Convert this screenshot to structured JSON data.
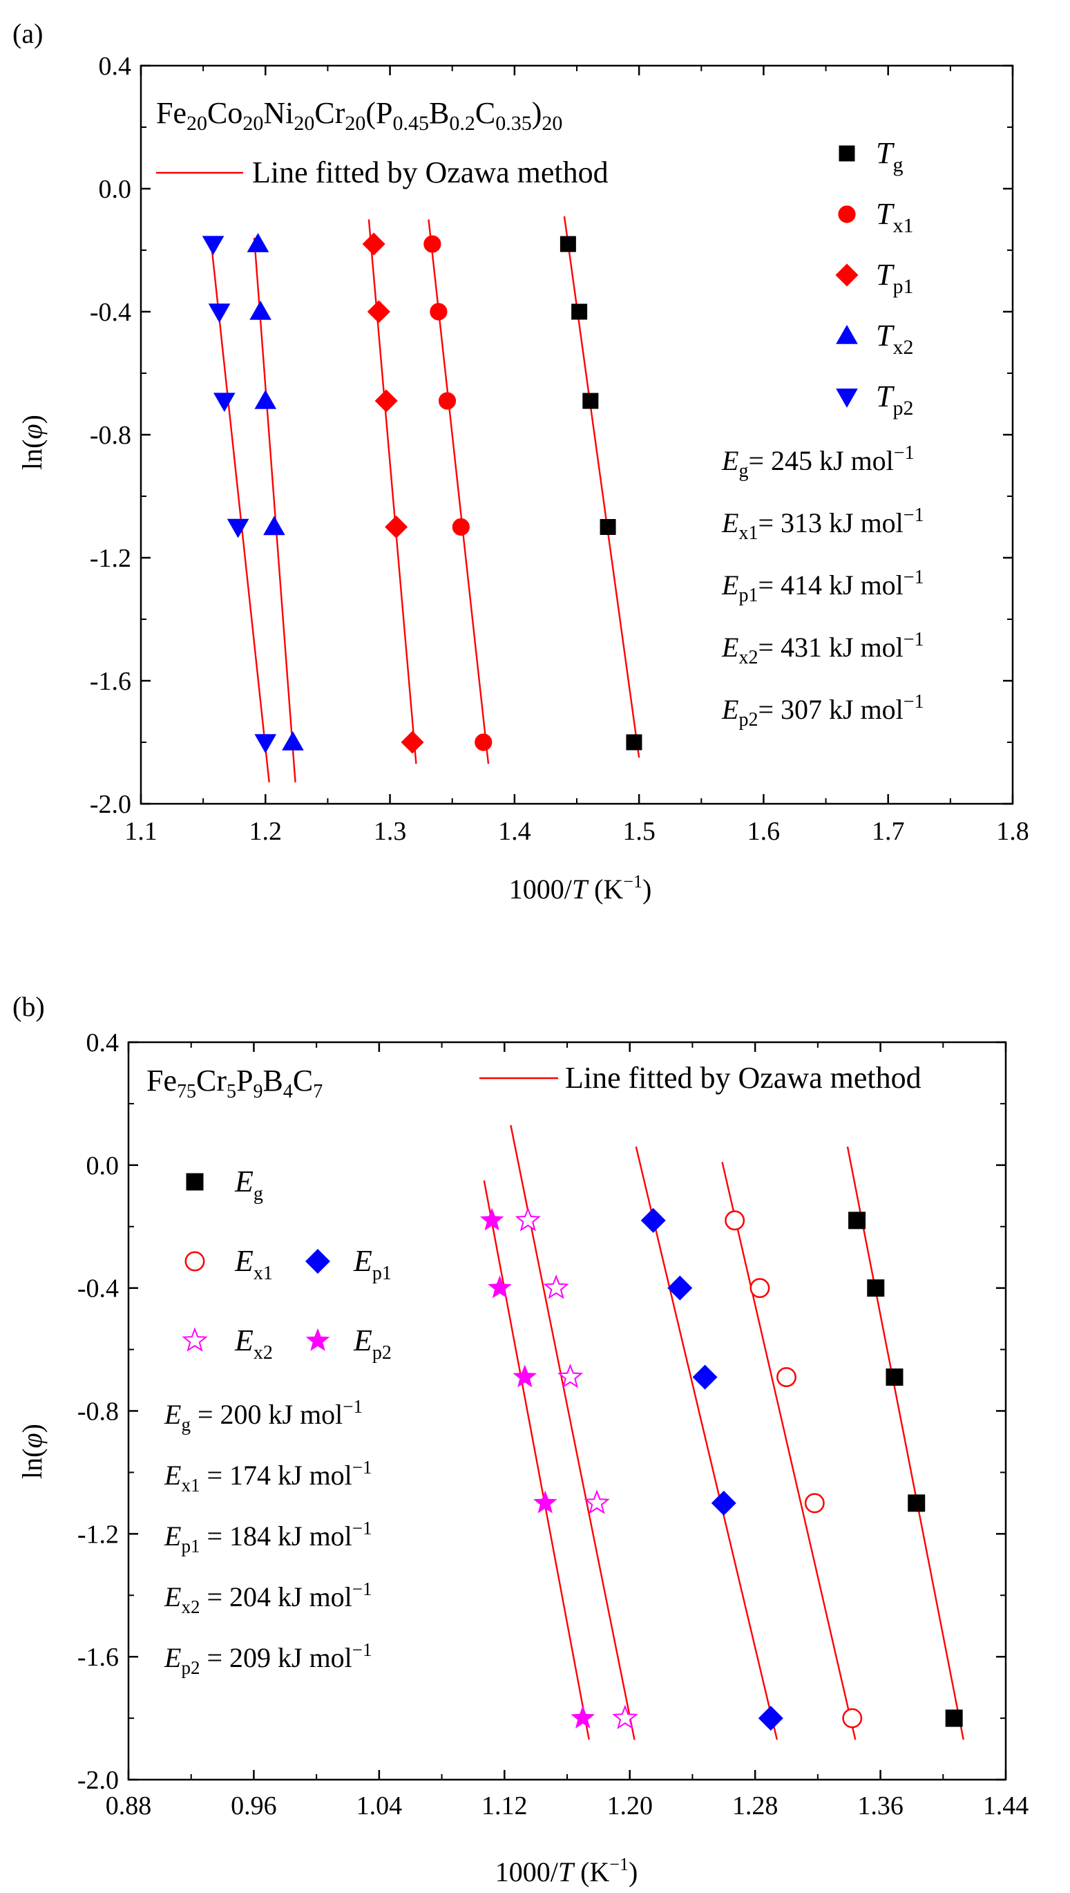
{
  "chart_data": [
    {
      "panel_label": "(a)",
      "type": "scatter",
      "alloy_title": "Fe20Co20Ni20Cr20(P0.45B0.2C0.35)20",
      "alloy_title_parts": [
        {
          "text": "Fe"
        },
        {
          "text": "20",
          "sub": true
        },
        {
          "text": "Co"
        },
        {
          "text": "20",
          "sub": true
        },
        {
          "text": "Ni"
        },
        {
          "text": "20",
          "sub": true
        },
        {
          "text": "Cr"
        },
        {
          "text": "20",
          "sub": true
        },
        {
          "text": "(P"
        },
        {
          "text": "0.45",
          "sub": true
        },
        {
          "text": "B"
        },
        {
          "text": "0.2",
          "sub": true
        },
        {
          "text": "C"
        },
        {
          "text": "0.35",
          "sub": true
        },
        {
          "text": ")"
        },
        {
          "text": "20",
          "sub": true
        }
      ],
      "fit_legend": "Line fitted by Ozawa method",
      "xlabel": "1000/T (K⁻¹)",
      "ylabel": "ln(φ)",
      "xlim": [
        1.1,
        1.8
      ],
      "ylim": [
        -2.0,
        0.4
      ],
      "xticks": [
        "1.1",
        "1.2",
        "1.3",
        "1.4",
        "1.5",
        "1.6",
        "1.7",
        "1.8"
      ],
      "yticks": [
        "0.4",
        "0.0",
        "-0.4",
        "-0.8",
        "-1.2",
        "-1.6",
        "-2.0"
      ],
      "y": [
        -0.18,
        -0.4,
        -0.69,
        -1.1,
        -1.8
      ],
      "series": [
        {
          "name": "Tg",
          "sym": "T",
          "sub": "g",
          "marker": "square",
          "color": "#000000",
          "fill": true,
          "x": [
            1.443,
            1.452,
            1.461,
            1.475,
            1.496
          ]
        },
        {
          "name": "Tx1",
          "sym": "T",
          "sub": "x1",
          "marker": "circle",
          "color": "#ff0000",
          "fill": true,
          "x": [
            1.334,
            1.339,
            1.346,
            1.357,
            1.375
          ]
        },
        {
          "name": "Tp1",
          "sym": "T",
          "sub": "p1",
          "marker": "diamond",
          "color": "#ff0000",
          "fill": true,
          "x": [
            1.287,
            1.291,
            1.297,
            1.305,
            1.318
          ]
        },
        {
          "name": "Tx2",
          "sym": "T",
          "sub": "x2",
          "marker": "triangle-up",
          "color": "#0000ff",
          "fill": true,
          "x": [
            1.194,
            1.196,
            1.2,
            1.207,
            1.222
          ]
        },
        {
          "name": "Tp2",
          "sym": "T",
          "sub": "p2",
          "marker": "triangle-down",
          "color": "#0000ff",
          "fill": true,
          "x": [
            1.158,
            1.163,
            1.167,
            1.178,
            1.2
          ]
        }
      ],
      "fit_lines": [
        {
          "x": [
            1.44,
            1.5
          ],
          "y": [
            -0.09,
            -1.85
          ]
        },
        {
          "x": [
            1.331,
            1.379
          ],
          "y": [
            -0.1,
            -1.87
          ]
        },
        {
          "x": [
            1.283,
            1.321
          ],
          "y": [
            -0.1,
            -1.87
          ]
        },
        {
          "x": [
            1.191,
            1.224
          ],
          "y": [
            -0.16,
            -1.93
          ]
        },
        {
          "x": [
            1.156,
            1.203
          ],
          "y": [
            -0.16,
            -1.93
          ]
        }
      ],
      "energies": [
        {
          "sym": "E",
          "sub": "g",
          "sep": "= ",
          "value": "245",
          "unit": "kJ mol",
          "exp": "−1"
        },
        {
          "sym": "E",
          "sub": "x1",
          "sep": "= ",
          "value": "313",
          "unit": "kJ mol",
          "exp": "−1"
        },
        {
          "sym": "E",
          "sub": "p1",
          "sep": "= ",
          "value": "414",
          "unit": "kJ mol",
          "exp": "−1"
        },
        {
          "sym": "E",
          "sub": "x2",
          "sep": "= ",
          "value": "431",
          "unit": "kJ mol",
          "exp": "−1"
        },
        {
          "sym": "E",
          "sub": "p2",
          "sep": "= ",
          "value": "307",
          "unit": "kJ mol",
          "exp": "−1"
        }
      ]
    },
    {
      "panel_label": "(b)",
      "type": "scatter",
      "alloy_title": "Fe75Cr5P9B4C7",
      "alloy_title_parts": [
        {
          "text": "Fe"
        },
        {
          "text": "75",
          "sub": true
        },
        {
          "text": "Cr"
        },
        {
          "text": "5",
          "sub": true
        },
        {
          "text": "P"
        },
        {
          "text": "9",
          "sub": true
        },
        {
          "text": "B"
        },
        {
          "text": "4",
          "sub": true
        },
        {
          "text": "C"
        },
        {
          "text": "7",
          "sub": true
        }
      ],
      "fit_legend": "Line fitted by Ozawa method",
      "xlabel": "1000/T (K⁻¹)",
      "ylabel": "ln(φ)",
      "xlim": [
        0.88,
        1.44
      ],
      "ylim": [
        -2.0,
        0.4
      ],
      "xticks": [
        "0.88",
        "0.96",
        "1.04",
        "1.12",
        "1.20",
        "1.28",
        "1.36",
        "1.44"
      ],
      "yticks": [
        "0.4",
        "0.0",
        "-0.4",
        "-0.8",
        "-1.2",
        "-1.6",
        "-2.0"
      ],
      "y": [
        -0.18,
        -0.4,
        -0.69,
        -1.1,
        -1.8
      ],
      "series": [
        {
          "name": "Eg",
          "sym": "E",
          "sub": "g",
          "marker": "square",
          "color": "#000000",
          "fill": true,
          "x": [
            1.345,
            1.357,
            1.369,
            1.383,
            1.407
          ]
        },
        {
          "name": "Ex1",
          "sym": "E",
          "sub": "x1",
          "marker": "circle",
          "color": "#ff0000",
          "fill": false,
          "x": [
            1.267,
            1.283,
            1.3,
            1.318,
            1.342
          ]
        },
        {
          "name": "Ep1",
          "sym": "E",
          "sub": "p1",
          "marker": "diamond",
          "color": "#0000ff",
          "fill": true,
          "x": [
            1.215,
            1.232,
            1.248,
            1.26,
            1.29
          ]
        },
        {
          "name": "Ex2",
          "sym": "E",
          "sub": "x2",
          "marker": "star",
          "color": "#ff00ff",
          "fill": false,
          "x": [
            1.135,
            1.153,
            1.162,
            1.179,
            1.197
          ]
        },
        {
          "name": "Ep2",
          "sym": "E",
          "sub": "p2",
          "marker": "star",
          "color": "#ff00ff",
          "fill": true,
          "x": [
            1.112,
            1.117,
            1.133,
            1.146,
            1.17
          ]
        }
      ],
      "legend_rows": [
        [
          {
            "series": 0
          }
        ],
        [
          {
            "series": 1
          },
          {
            "series": 2
          }
        ],
        [
          {
            "series": 3
          },
          {
            "series": 4
          }
        ]
      ],
      "fit_lines": [
        {
          "x": [
            1.339,
            1.413
          ],
          "y": [
            0.06,
            -1.87
          ]
        },
        {
          "x": [
            1.259,
            1.344
          ],
          "y": [
            0.01,
            -1.87
          ]
        },
        {
          "x": [
            1.204,
            1.294
          ],
          "y": [
            0.06,
            -1.87
          ]
        },
        {
          "x": [
            1.124,
            1.203
          ],
          "y": [
            0.13,
            -1.87
          ]
        },
        {
          "x": [
            1.107,
            1.174
          ],
          "y": [
            -0.05,
            -1.87
          ]
        }
      ],
      "energies": [
        {
          "sym": "E",
          "sub": "g",
          "sep": " = ",
          "value": "200",
          "unit": "kJ mol",
          "exp": "−1"
        },
        {
          "sym": "E",
          "sub": "x1",
          "sep": " = ",
          "value": "174",
          "unit": "kJ mol",
          "exp": "−1"
        },
        {
          "sym": "E",
          "sub": "p1",
          "sep": " = ",
          "value": "184",
          "unit": "kJ mol",
          "exp": "−1"
        },
        {
          "sym": "E",
          "sub": "x2",
          "sep": " = ",
          "value": "204",
          "unit": "kJ mol",
          "exp": "−1"
        },
        {
          "sym": "E",
          "sub": "p2",
          "sep": " = ",
          "value": "209",
          "unit": "kJ mol",
          "exp": "−1"
        }
      ]
    }
  ]
}
